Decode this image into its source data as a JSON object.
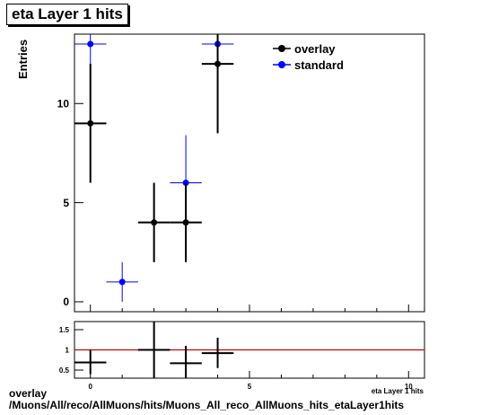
{
  "title": "eta Layer 1 hits",
  "footer": {
    "line1": "overlay",
    "line2": "/Muons/All/reco/AllMuons/hits/Muons_All_reco_AllMuons_hits_etaLayer1hits"
  },
  "colors": {
    "overlay": "#000000",
    "standard": "#0000ff",
    "ratio_line": "#cc0000"
  },
  "chart_data": [
    {
      "type": "scatter",
      "title": "eta Layer 1 hits",
      "xlabel": "eta Layer 1 hits",
      "ylabel": "Entries",
      "xlim": [
        -0.5,
        10.5
      ],
      "ylim": [
        -0.5,
        13.5
      ],
      "yticks": [
        0,
        5,
        10
      ],
      "xticks": [
        0,
        5,
        10
      ],
      "legend_position": "top-right",
      "series": [
        {
          "name": "overlay",
          "color": "#000000",
          "points": [
            {
              "x": 0,
              "y": 9,
              "xerr": 0.5,
              "ylo": 6,
              "yhi": 12
            },
            {
              "x": 2,
              "y": 4,
              "xerr": 0.5,
              "ylo": 2,
              "yhi": 6
            },
            {
              "x": 3,
              "y": 4,
              "xerr": 0.5,
              "ylo": 2,
              "yhi": 6
            },
            {
              "x": 4,
              "y": 12,
              "xerr": 0.5,
              "ylo": 8.5,
              "yhi": 15.5
            }
          ]
        },
        {
          "name": "standard",
          "color": "#0000ff",
          "points": [
            {
              "x": 0,
              "y": 13,
              "xerr": 0.5,
              "ylo": 9.4,
              "yhi": 16.6
            },
            {
              "x": 1,
              "y": 1,
              "xerr": 0.5,
              "ylo": 0,
              "yhi": 2
            },
            {
              "x": 3,
              "y": 6,
              "xerr": 0.5,
              "ylo": 3.6,
              "yhi": 8.4
            },
            {
              "x": 4,
              "y": 13,
              "xerr": 0.5,
              "ylo": 9.4,
              "yhi": 16.6
            }
          ]
        }
      ]
    },
    {
      "type": "scatter",
      "xlabel": "eta Layer 1 hits",
      "xlim": [
        -0.5,
        10.5
      ],
      "ylim": [
        0.3,
        1.7
      ],
      "yticks": [
        0.5,
        1,
        1.5
      ],
      "xticks": [
        0,
        5,
        10
      ],
      "reference_line": 1,
      "series": [
        {
          "color": "#000000",
          "points": [
            {
              "x": 0,
              "y": 0.69,
              "xerr": 0.5,
              "ylo": 0.4,
              "yhi": 1.0
            },
            {
              "x": 2,
              "y": 1.0,
              "xerr": 0.5,
              "ylo": 0.3,
              "yhi": 1.7
            },
            {
              "x": 3,
              "y": 0.67,
              "xerr": 0.5,
              "ylo": 0.2,
              "yhi": 1.1
            },
            {
              "x": 4,
              "y": 0.92,
              "xerr": 0.5,
              "ylo": 0.55,
              "yhi": 1.3
            }
          ]
        }
      ]
    }
  ]
}
